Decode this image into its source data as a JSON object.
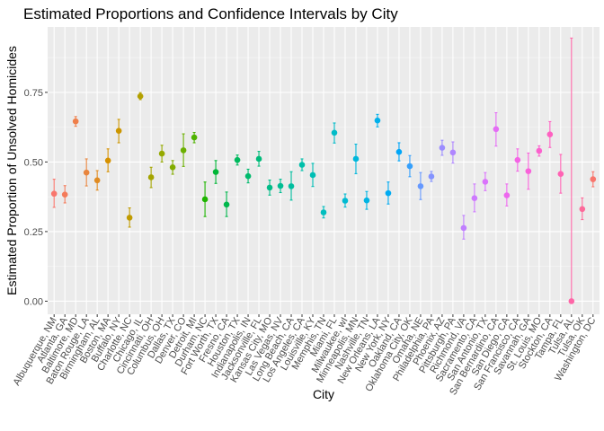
{
  "chart_data": {
    "type": "scatter",
    "title": "Estimated Proportions and Confidence Intervals by City",
    "xlabel": "City",
    "ylabel": "Estimated Proportion of Unsolved Homicides",
    "ylim": [
      -0.047,
      0.985
    ],
    "yticks": [
      0.0,
      0.25,
      0.5,
      0.75
    ],
    "ytick_labels": [
      "0.00",
      "0.25",
      "0.50",
      "0.75"
    ],
    "grid": true,
    "legend": "none",
    "categories": [
      "Albuquerque, NM",
      "Atlanta, GA",
      "Baltimore, MD",
      "Baton Rouge, LA",
      "Birmingham, AL",
      "Boston, MA",
      "Buffalo, NY",
      "Charlotte, NC",
      "Chicago, IL",
      "Cincinnati, OH",
      "Columbus, OH",
      "Dallas, TX",
      "Denver, CO",
      "Detroit, MI",
      "Durham, NC",
      "Fort Worth, TX",
      "Fresno, CA",
      "Houston, TX",
      "Indianapolis, IN",
      "Jacksonville, FL",
      "Kansas City, MO",
      "Las Vegas, NV",
      "Long Beach, CA",
      "Los Angeles, CA",
      "Louisville, KY",
      "Memphis, TN",
      "Miami, FL",
      "Milwaukee, wI",
      "Minneapolis, MN",
      "Nashville, TN",
      "New Orleans, LA",
      "New York, NY",
      "Oakland, CA",
      "Oklahoma City, OK",
      "Omaha, NE",
      "Philadelphia, PA",
      "Phoenix, AZ",
      "Pittsburgh, PA",
      "Richmond, VA",
      "Sacramento, CA",
      "San Antonio, TX",
      "San Bernardino, CA",
      "San Diego, CA",
      "San Francisco, CA",
      "Savannah, GA",
      "St. Louis, MO",
      "Stockton, CA",
      "Tampa, FL",
      "Tulsa, AL",
      "Tulsa, OK",
      "Washington, DC"
    ],
    "estimate": [
      0.386,
      0.383,
      0.646,
      0.462,
      0.434,
      0.505,
      0.612,
      0.3,
      0.736,
      0.445,
      0.53,
      0.481,
      0.542,
      0.588,
      0.366,
      0.464,
      0.347,
      0.507,
      0.449,
      0.511,
      0.408,
      0.414,
      0.413,
      0.49,
      0.453,
      0.319,
      0.605,
      0.361,
      0.511,
      0.362,
      0.649,
      0.388,
      0.536,
      0.485,
      0.413,
      0.448,
      0.551,
      0.534,
      0.263,
      0.37,
      0.429,
      0.618,
      0.38,
      0.507,
      0.467,
      0.54,
      0.599,
      0.457,
      0.0,
      0.331,
      0.438
    ],
    "ci_lower": [
      0.337,
      0.353,
      0.628,
      0.414,
      0.399,
      0.465,
      0.569,
      0.266,
      0.724,
      0.408,
      0.5,
      0.456,
      0.484,
      0.569,
      0.304,
      0.423,
      0.304,
      0.489,
      0.425,
      0.485,
      0.381,
      0.39,
      0.363,
      0.469,
      0.412,
      0.299,
      0.568,
      0.338,
      0.458,
      0.33,
      0.626,
      0.349,
      0.504,
      0.447,
      0.365,
      0.43,
      0.524,
      0.496,
      0.223,
      0.321,
      0.397,
      0.557,
      0.342,
      0.467,
      0.402,
      0.521,
      0.552,
      0.388,
      0.0,
      0.293,
      0.411
    ],
    "ci_upper": [
      0.438,
      0.415,
      0.663,
      0.511,
      0.469,
      0.547,
      0.653,
      0.335,
      0.749,
      0.481,
      0.56,
      0.505,
      0.601,
      0.606,
      0.428,
      0.505,
      0.392,
      0.525,
      0.474,
      0.538,
      0.435,
      0.438,
      0.465,
      0.511,
      0.495,
      0.34,
      0.64,
      0.385,
      0.564,
      0.394,
      0.671,
      0.428,
      0.569,
      0.523,
      0.462,
      0.466,
      0.578,
      0.572,
      0.308,
      0.421,
      0.462,
      0.677,
      0.421,
      0.547,
      0.532,
      0.558,
      0.645,
      0.527,
      0.945,
      0.371,
      0.465
    ],
    "colors": [
      "#F8766D",
      "#F47B5A",
      "#EF7F4A",
      "#E8853E",
      "#E08B21",
      "#D69100",
      "#CC9600",
      "#C09B00",
      "#B3A000",
      "#A4A400",
      "#95A900",
      "#82AC00",
      "#6BAF00",
      "#4EB200",
      "#1EB400",
      "#00B637",
      "#00B74C",
      "#00B95E",
      "#00BA6D",
      "#00BB7A",
      "#00BC87",
      "#00BD93",
      "#00BE9F",
      "#00BFAA",
      "#00BEB4",
      "#00BEBE",
      "#00BCC8",
      "#00BAD2",
      "#00B7DB",
      "#00B4E3",
      "#00B0EB",
      "#00ABF2",
      "#00A6F8",
      "#35A0FC",
      "#6699FF",
      "#8493FF",
      "#9C8DFF",
      "#AF86FF",
      "#C07FFF",
      "#CE79FF",
      "#DA73FB",
      "#E46DF5",
      "#ED68EE",
      "#F464E5",
      "#F962DA",
      "#FC61CE",
      "#FE61C1",
      "#FF63B4",
      "#FE66A7",
      "#FC6A9A",
      "#F8766D"
    ]
  }
}
